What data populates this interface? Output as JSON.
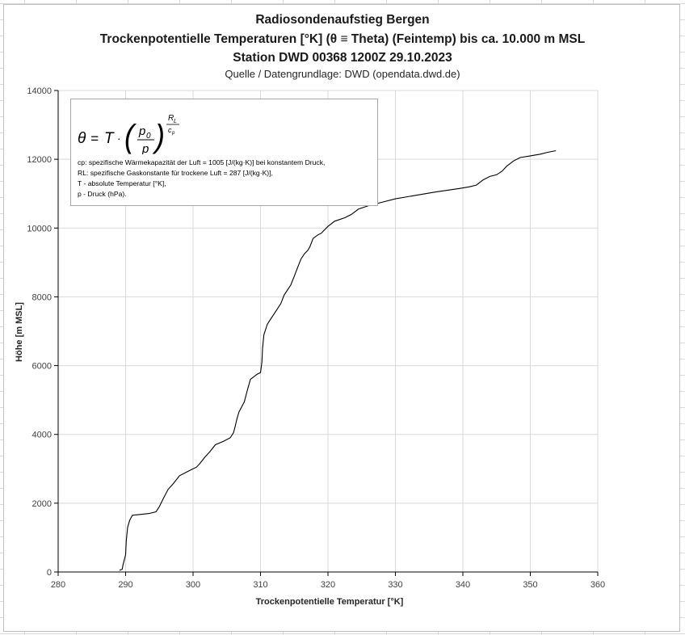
{
  "title_lines": [
    "Radiosondenaufstieg Bergen",
    "Trockenpotentielle Temperaturen [°K] (θ ≡ Theta) (Feintemp) bis ca. 10.000 m MSL",
    "Station DWD 00368 1200Z 29.10.2023"
  ],
  "subtitle": "Quelle / Datengrundlage: DWD (opendata.dwd.de)",
  "legend_box": {
    "formula": "θ = T · (p0 / p)^(RL / cp)",
    "lines": [
      "cp: spezifische Wärmekapazität der Luft = 1005 [J/(kg·K)] bei konstantem Druck,",
      "RL: spezifische Gaskonstante für trockene Luft = 287 [J/(kg·K)],",
      "T - absolute Temperatur [°K],",
      "p - Druck (hPa)."
    ]
  },
  "colors": {
    "line": "#000000",
    "grid": "#d9d9d9",
    "axis": "#000000",
    "sheet_grid": "#dadada"
  },
  "chart_data": {
    "type": "line",
    "title": "Radiosondenaufstieg Bergen / Trockenpotentielle Temperaturen [°K] (θ ≡ Theta) (Feintemp) bis ca. 10.000 m MSL / Station DWD 00368 1200Z 29.10.2023",
    "xlabel": "Trockenpotentielle Temperatur [°K]",
    "ylabel": "Höhe [m MSL]",
    "xlim": [
      280,
      360
    ],
    "ylim": [
      0,
      14000
    ],
    "x_ticks": [
      "280",
      "290",
      "300",
      "310",
      "320",
      "330",
      "340",
      "350",
      "360"
    ],
    "y_ticks": [
      "0",
      "2000",
      "4000",
      "6000",
      "8000",
      "10000",
      "12000",
      "14000"
    ],
    "grid": true,
    "legend": "none",
    "series": [
      {
        "x": [
          289.1,
          289.5,
          289.6,
          290.0,
          290.1,
          290.3,
          290.6,
          291.0,
          292.0,
          293.5,
          294.5,
          295.0,
          295.5,
          296.3,
          297.0,
          298.0,
          299.5,
          300.5,
          301.0,
          301.8,
          302.5,
          303.3,
          304.5,
          305.5,
          306.0,
          306.2,
          306.5,
          306.8,
          307.2,
          307.6,
          308.0,
          308.5,
          309.5,
          310.0,
          310.2,
          310.3,
          310.5,
          311.0,
          311.5,
          312.0,
          312.5,
          313.0,
          313.5,
          314.0,
          314.5,
          315.0,
          315.5,
          316.0,
          316.5,
          317.0,
          317.3,
          317.8,
          318.5,
          319.0,
          320.0,
          321.0,
          322.5,
          323.5,
          324.5,
          326.0,
          327.0,
          328.0,
          330.0,
          333.0,
          336.0,
          339.5,
          341.0,
          342.0,
          343.0,
          344.0,
          345.0,
          345.8,
          346.5,
          347.5,
          348.5,
          350.0,
          351.5,
          352.5,
          353.8
        ],
        "y": [
          50,
          80,
          200,
          500,
          900,
          1300,
          1500,
          1650,
          1670,
          1700,
          1750,
          1900,
          2100,
          2400,
          2550,
          2800,
          2950,
          3050,
          3150,
          3350,
          3500,
          3700,
          3800,
          3900,
          4050,
          4200,
          4450,
          4650,
          4800,
          4950,
          5250,
          5600,
          5750,
          5800,
          6100,
          6500,
          6900,
          7200,
          7350,
          7500,
          7650,
          7800,
          8050,
          8200,
          8350,
          8600,
          8850,
          9100,
          9250,
          9350,
          9450,
          9700,
          9800,
          9850,
          10050,
          10200,
          10300,
          10400,
          10550,
          10650,
          10700,
          10750,
          10850,
          10950,
          11050,
          11150,
          11200,
          11250,
          11400,
          11500,
          11550,
          11650,
          11800,
          11950,
          12050,
          12100,
          12150,
          12200,
          12250
        ]
      }
    ]
  }
}
